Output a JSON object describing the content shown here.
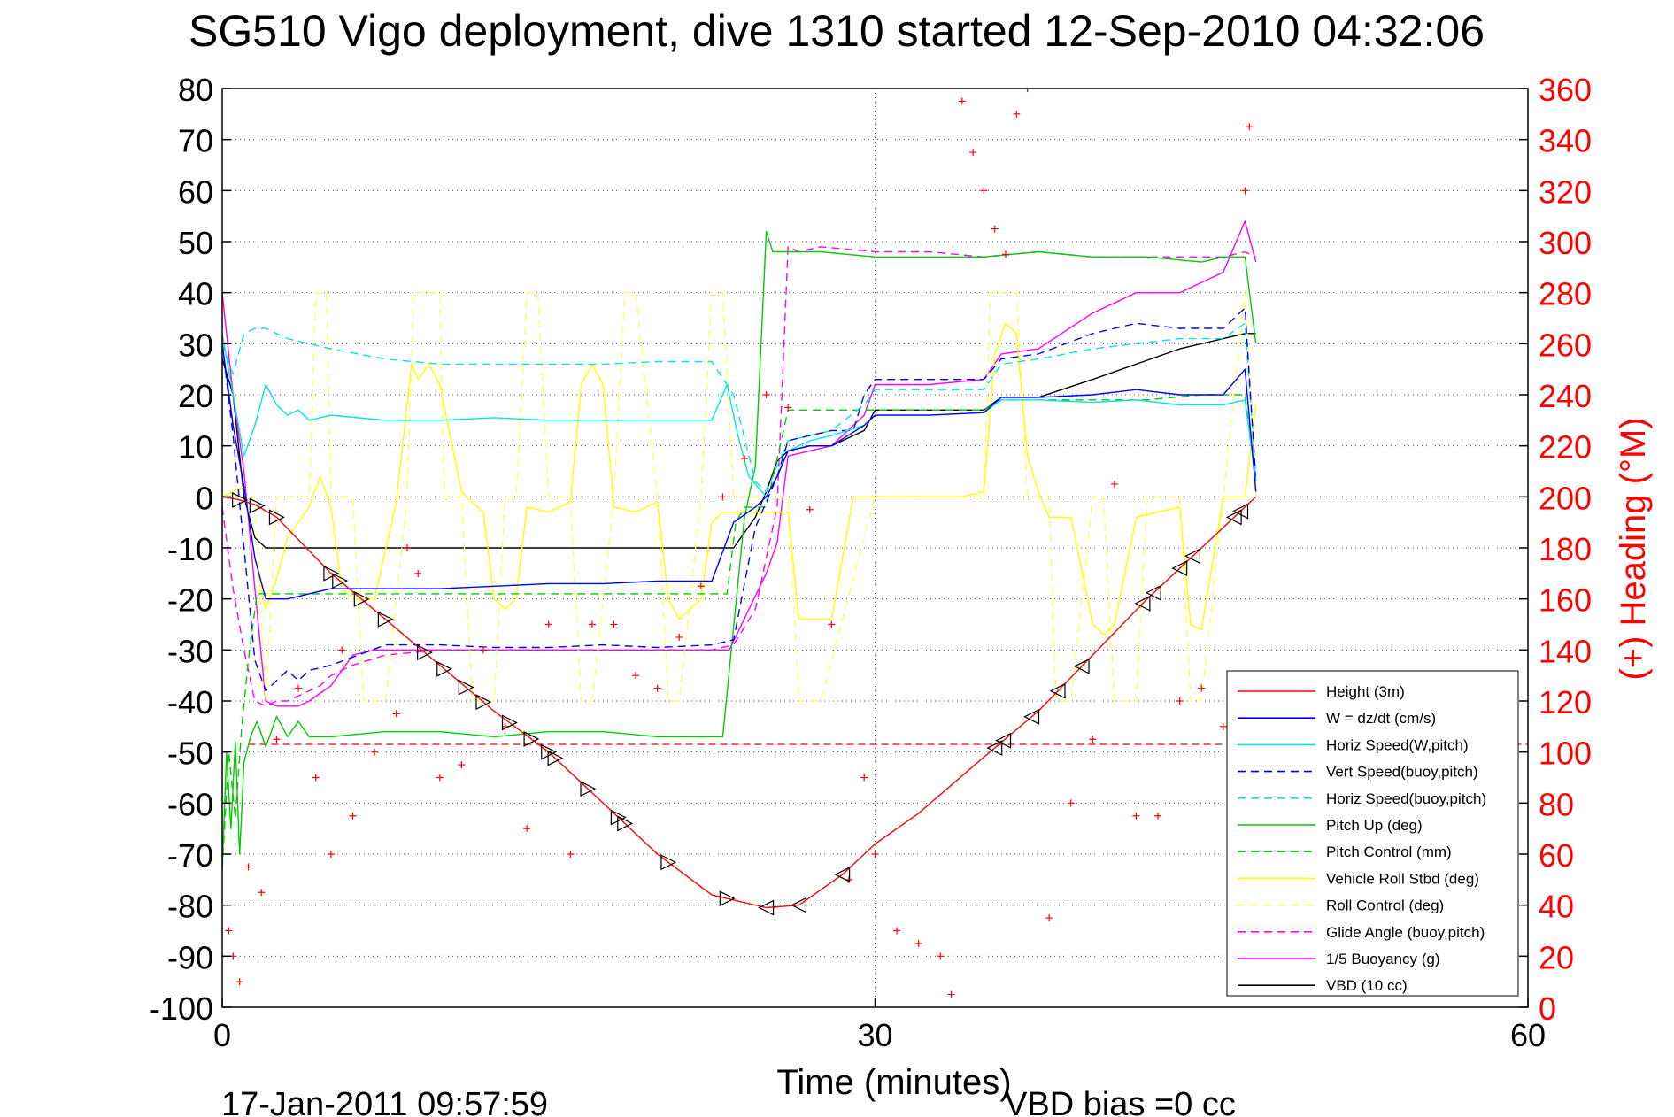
{
  "chart_data": {
    "type": "line",
    "title": "SG510 Vigo deployment, dive 1310 started 12-Sep-2010 04:32:06",
    "xlabel": "Time (minutes)",
    "ylabel_right": "(+) Heading (°M)",
    "xlim": [
      0,
      60
    ],
    "ylim": [
      -100,
      80
    ],
    "ylim_right": [
      0,
      360
    ],
    "x_ticks": [
      "0",
      "30",
      "60"
    ],
    "y_ticks": [
      "80",
      "70",
      "60",
      "50",
      "40",
      "30",
      "20",
      "10",
      "0",
      "-10",
      "-20",
      "-30",
      "-40",
      "-50",
      "-60",
      "-70",
      "-80",
      "-90",
      "-100"
    ],
    "y_right_ticks": [
      "360",
      "340",
      "320",
      "300",
      "280",
      "260",
      "240",
      "220",
      "200",
      "180",
      "160",
      "140",
      "120",
      "100",
      "80",
      "60",
      "40",
      "20",
      "0"
    ],
    "grid": "dotted",
    "legend_position": "bottom-right",
    "series": [
      {
        "name": "Height (3m)",
        "color": "#ff0000",
        "style": "solid",
        "x": [
          0,
          0.7,
          1.5,
          2.5,
          5,
          7.5,
          10,
          12.5,
          15,
          17.5,
          20,
          22.5,
          25,
          26.5,
          27.5,
          28.5,
          30,
          32,
          35,
          37.5,
          40,
          42.5,
          45,
          47.5
        ],
        "y": [
          0,
          -0.5,
          -1.5,
          -4,
          -15,
          -24,
          -33,
          -42,
          -50,
          -60,
          -70,
          -78,
          -80.5,
          -80,
          -77,
          -74,
          -68,
          -62,
          -51,
          -42,
          -31,
          -20,
          -10,
          0
        ]
      },
      {
        "name": "W = dz/dt (cm/s)",
        "color": "#0000ff",
        "style": "solid",
        "x": [
          0,
          0.5,
          1,
          1.5,
          2,
          3,
          5,
          7.5,
          10,
          12.5,
          15,
          17.5,
          20,
          22.5,
          23.5,
          24.5,
          25,
          25.5,
          26,
          27,
          28,
          29.5,
          30,
          32.5,
          35,
          35.8,
          37.5,
          40,
          42,
          44,
          46,
          47,
          47.5
        ],
        "y": [
          30,
          14,
          2,
          -12,
          -20,
          -20,
          -18,
          -18,
          -18,
          -17.5,
          -17,
          -17,
          -16.5,
          -16.5,
          -5,
          -2,
          0,
          4,
          9,
          10,
          10,
          14,
          16,
          16,
          16.5,
          19.5,
          19.5,
          20,
          21,
          20,
          20,
          25,
          1
        ]
      },
      {
        "name": "Horiz Speed(W,pitch)",
        "color": "#00e5e5",
        "style": "solid",
        "x": [
          0,
          0.5,
          1,
          1.5,
          2,
          2.5,
          3,
          3.5,
          4,
          5,
          7.5,
          10,
          12.5,
          15,
          17.5,
          20,
          22.5,
          23.2,
          23.7,
          24.2,
          25,
          25.5,
          26,
          27,
          28,
          29.5,
          30,
          32.5,
          35,
          35.8,
          37.5,
          40,
          42,
          44,
          46,
          47,
          47.5
        ],
        "y": [
          32,
          20,
          8,
          14,
          22,
          18,
          16,
          17,
          15,
          16,
          15,
          15,
          15.5,
          15,
          15,
          15,
          15,
          22,
          12,
          4,
          0,
          4,
          9,
          11,
          12,
          14,
          16,
          16,
          16.5,
          19,
          19,
          18.5,
          19,
          18,
          18,
          19,
          3
        ]
      },
      {
        "name": "Vert Speed(buoy,pitch)",
        "color": "#0000ff",
        "style": "dashed",
        "x": [
          0,
          0.5,
          1,
          1.5,
          2,
          2.5,
          3,
          3.5,
          4,
          5,
          7.5,
          10,
          12.5,
          15,
          17.5,
          20,
          22.5,
          23.5,
          24.5,
          25,
          25.5,
          26,
          27,
          28,
          29,
          29.5,
          30,
          32.5,
          35,
          35.8,
          37.5,
          40,
          42,
          44,
          46,
          47,
          47.5
        ],
        "y": [
          30,
          12,
          -10,
          -32,
          -38,
          -36,
          -34,
          -36,
          -34,
          -33,
          -29,
          -29,
          -29.5,
          -29.5,
          -29,
          -29.5,
          -29,
          -28,
          -6,
          -1,
          4,
          11,
          12,
          13,
          13,
          20,
          23,
          23,
          23,
          27,
          28,
          32,
          34,
          33,
          33,
          37,
          3
        ]
      },
      {
        "name": "Horiz Speed(buoy,pitch)",
        "color": "#00e5e5",
        "style": "dashed",
        "x": [
          0,
          0.5,
          1,
          1.5,
          2,
          3,
          5,
          7.5,
          10,
          12.5,
          15,
          17.5,
          20,
          22.5,
          23.5,
          24.5,
          25,
          25.5,
          26,
          27,
          28,
          29.5,
          30,
          32.5,
          35,
          35.8,
          37.5,
          40,
          42,
          44,
          46,
          47,
          47.5
        ],
        "y": [
          30,
          24,
          32,
          33,
          33,
          31,
          29,
          27,
          26,
          26,
          26,
          26,
          26.5,
          26.5,
          20,
          3,
          1,
          6,
          11,
          12,
          13,
          18,
          21,
          21,
          21,
          26,
          27,
          29,
          30,
          31,
          31,
          34,
          4
        ]
      },
      {
        "name": "Pitch Up (deg)",
        "color": "#00cc00",
        "style": "solid",
        "x": [
          0,
          0.2,
          0.4,
          0.6,
          0.8,
          1,
          1.3,
          1.6,
          2,
          2.5,
          3,
          3.5,
          4,
          5,
          7.5,
          10,
          12.5,
          15,
          17.5,
          20,
          22.5,
          23,
          24,
          24.5,
          25,
          25.3,
          26,
          27.5,
          30,
          32.5,
          35,
          37.5,
          40,
          42.5,
          45,
          46,
          47,
          47.5
        ],
        "y": [
          -73,
          -50,
          -65,
          -48,
          -70,
          -52,
          -47,
          -44,
          -49,
          -43,
          -47,
          -44,
          -47,
          -47,
          -46,
          -46,
          -47,
          -46,
          -46,
          -47,
          -47,
          -47,
          -4,
          6,
          52,
          48,
          48,
          48,
          47,
          47,
          47,
          48,
          47,
          47,
          46,
          47,
          47,
          30
        ]
      },
      {
        "name": "Pitch Control (mm)",
        "color": "#00cc00",
        "style": "dashed",
        "x": [
          0,
          0.3,
          0.6,
          0.9,
          1.2,
          1.6,
          2,
          3,
          5,
          7.5,
          10,
          12.5,
          15,
          17.5,
          20,
          22.5,
          23.2,
          23.6,
          24,
          25,
          26,
          27,
          30,
          32.5,
          35,
          35.7,
          37.5,
          40,
          42.5,
          45,
          47,
          47.5
        ],
        "y": [
          -73,
          -50,
          -63,
          -45,
          -32,
          -19,
          -19,
          -19,
          -19,
          -19,
          -19,
          -19,
          -19,
          -19,
          -19,
          -19,
          -19,
          -5,
          -2,
          -2,
          17,
          17,
          17,
          17,
          17,
          19,
          19,
          19,
          19,
          20,
          20,
          3
        ]
      },
      {
        "name": "Vehicle Roll Stbd (deg)",
        "color": "#ffff00",
        "style": "solid",
        "x": [
          0,
          1,
          1.5,
          2,
          2.5,
          3,
          4,
          4.5,
          5,
          5.5,
          6,
          7,
          8,
          8.7,
          9,
          9.5,
          10,
          11,
          12,
          12.5,
          13,
          13.5,
          14,
          15,
          16,
          16.5,
          17,
          17.5,
          18,
          19,
          20,
          20.5,
          21,
          22,
          22.5,
          23,
          23.5,
          24,
          25,
          26,
          26.5,
          27.5,
          28,
          29,
          30,
          32,
          34,
          35,
          35.5,
          36,
          36.5,
          37,
          37.5,
          38,
          39,
          40,
          40.5,
          41,
          42,
          43,
          44,
          44.5,
          45,
          46,
          47,
          47.5
        ],
        "y": [
          0,
          2,
          -12,
          -22,
          -16,
          -8,
          -2,
          4,
          -2,
          -18,
          -20,
          -20,
          -1,
          26,
          23,
          26,
          22,
          1,
          -3,
          -20,
          -22,
          -20,
          -2,
          -3,
          -1,
          22,
          26,
          22,
          -2,
          -3,
          -1,
          -20,
          -24,
          -20,
          -5,
          -3,
          -3,
          -3,
          -3,
          -3,
          -24,
          -24,
          -24,
          0,
          0,
          0,
          0,
          1,
          28,
          34,
          32,
          8,
          1,
          -4,
          -4,
          -25,
          -27,
          -25,
          -4,
          -3,
          -2,
          -25,
          -26,
          0,
          0,
          18
        ]
      },
      {
        "name": "Roll Control (deg)",
        "color": "#ffff66",
        "style": "dashed",
        "x": [
          0,
          1.5,
          2,
          2.5,
          4,
          4.3,
          4.8,
          5,
          6,
          6.5,
          7.5,
          8.5,
          8.8,
          10,
          10.2,
          11,
          11.5,
          12.5,
          13,
          13.5,
          14,
          14.5,
          15,
          16,
          16.5,
          17,
          18,
          18.5,
          19,
          20,
          20.5,
          21,
          22,
          22.5,
          23,
          23.5,
          24,
          26,
          26.5,
          27.5,
          30,
          35,
          35.3,
          36.5,
          37,
          38,
          38.3,
          39,
          40,
          40.5,
          41,
          42,
          42.5,
          44,
          44.5,
          45,
          46,
          47,
          47.5
        ],
        "y": [
          0,
          0,
          -40,
          0,
          0,
          40,
          40,
          0,
          0,
          -40,
          -40,
          0,
          40,
          40,
          0,
          0,
          -40,
          -40,
          0,
          0,
          40,
          40,
          0,
          0,
          -40,
          -40,
          0,
          40,
          40,
          0,
          -40,
          -40,
          0,
          40,
          40,
          0,
          0,
          0,
          -40,
          -40,
          0,
          0,
          40,
          40,
          0,
          0,
          -40,
          -40,
          0,
          0,
          -40,
          -40,
          0,
          0,
          -40,
          -40,
          0,
          40,
          0
        ]
      },
      {
        "name": "Glide Angle (buoy,pitch)",
        "color": "#ff00ff",
        "style": "dashed",
        "x": [
          0,
          0.5,
          1,
          1.5,
          2,
          2.5,
          3,
          3.5,
          4,
          4.5,
          5,
          5.5,
          6,
          7.5,
          10,
          12.5,
          15,
          17.5,
          20,
          22.5,
          23.5,
          24.5,
          25.5,
          26,
          26.5,
          27.5,
          30,
          32.5,
          35,
          37.5,
          40,
          42.5,
          45,
          46,
          47,
          47.5
        ],
        "y": [
          -2,
          -18,
          -30,
          -40,
          -41,
          -40,
          -40,
          -39,
          -38,
          -37,
          -35,
          -34,
          -33,
          -31,
          -30,
          -30,
          -30,
          -30,
          -30,
          -30,
          -29,
          -22,
          -2,
          49,
          48,
          49,
          48,
          48,
          47,
          48,
          47,
          47,
          47,
          47,
          48,
          47
        ]
      },
      {
        "name": "1/5 Buoyancy (g)",
        "color": "#ff00ff",
        "style": "solid",
        "x": [
          0,
          0.5,
          1,
          1.5,
          2,
          2.5,
          3,
          3.5,
          4,
          5,
          6,
          7,
          8,
          9,
          10,
          12.5,
          15,
          17.5,
          20,
          22.5,
          23.3,
          25,
          25.5,
          26,
          27,
          28,
          29.5,
          30,
          32.5,
          35,
          35.8,
          37.5,
          40,
          42,
          44,
          46,
          47,
          47.5
        ],
        "y": [
          40,
          20,
          5,
          -18,
          -40,
          -41,
          -41,
          -41,
          -40,
          -37,
          -31,
          -30,
          -30,
          -30,
          -30,
          -30,
          -30,
          -30,
          -30,
          -30,
          -30,
          -15,
          -9,
          8,
          9,
          10,
          16,
          22,
          22,
          23,
          28,
          29,
          36,
          40,
          40,
          44,
          54,
          46
        ]
      },
      {
        "name": "VBD (10 cc)",
        "color": "#000000",
        "style": "solid",
        "x": [
          0,
          0.5,
          1,
          1.5,
          2,
          5,
          10,
          15,
          20,
          22.5,
          23.5,
          24.5,
          25,
          25.5,
          26,
          27,
          28,
          29.5,
          30,
          32.5,
          35,
          35.8,
          37.5,
          40,
          42,
          44,
          46,
          47,
          47.5
        ],
        "y": [
          27,
          20,
          0,
          -8,
          -10,
          -10,
          -10,
          -10,
          -10,
          -10,
          -10,
          -4,
          1,
          7,
          9,
          10,
          10,
          13,
          17,
          17,
          17,
          19.5,
          19.5,
          23,
          26,
          29,
          31,
          32,
          32
        ]
      }
    ],
    "heading_points": {
      "name": "Heading",
      "color": "#ff0000",
      "axis": "right",
      "x": [
        0.3,
        0.5,
        0.8,
        1.2,
        1.8,
        2.5,
        3.5,
        4.3,
        5,
        5.5,
        6,
        7,
        8,
        8.5,
        9,
        10,
        11,
        12,
        13,
        14,
        15,
        16,
        17,
        18,
        19,
        20,
        21,
        22,
        23,
        24,
        25,
        26,
        27,
        28,
        28.8,
        29.5,
        30,
        31,
        32,
        33,
        33.5,
        34,
        34.5,
        35,
        35.5,
        36,
        36.5,
        37,
        38,
        39,
        40,
        41,
        42,
        43,
        44,
        45,
        46,
        46.5,
        47,
        47.2
      ],
      "y": [
        30,
        20,
        10,
        55,
        45,
        105,
        125,
        90,
        60,
        140,
        75,
        100,
        115,
        180,
        170,
        90,
        95,
        140,
        110,
        70,
        150,
        60,
        150,
        150,
        130,
        125,
        145,
        165,
        200,
        215,
        240,
        235,
        195,
        150,
        50,
        90,
        60,
        30,
        25,
        20,
        5,
        355,
        335,
        320,
        305,
        295,
        350,
        360,
        35,
        80,
        105,
        205,
        75,
        75,
        120,
        125,
        110,
        45,
        320,
        345
      ]
    }
  },
  "footer": {
    "timestamp": "17-Jan-2011 09:57:59",
    "vbd_bias": "VBD bias =0 cc"
  }
}
